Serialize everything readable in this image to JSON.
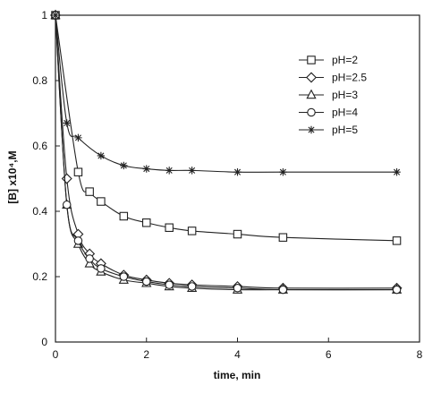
{
  "colors": {
    "ink": "#222222",
    "background": "#ffffff"
  },
  "chart_data": {
    "type": "line",
    "title": "",
    "xlabel": "time, min",
    "ylabel": "[B] x10⁴,M",
    "xlim": [
      0,
      8
    ],
    "ylim": [
      0,
      1
    ],
    "xticks": [
      0,
      2,
      4,
      6,
      8
    ],
    "yticks": [
      0,
      0.2,
      0.4,
      0.6,
      0.8,
      1
    ],
    "xtick_labels": [
      "0",
      "2",
      "4",
      "6",
      "8"
    ],
    "ytick_labels": [
      "0",
      "0.2",
      "0.4",
      "0.6",
      "0.8",
      "1"
    ],
    "grid": false,
    "legend_position": "top-right",
    "series": [
      {
        "name": "pH=2",
        "marker": "square",
        "x": [
          0,
          0.5,
          0.75,
          1.0,
          1.5,
          2.0,
          2.5,
          3.0,
          4.0,
          5.0,
          7.5
        ],
        "y": [
          1.0,
          0.52,
          0.46,
          0.43,
          0.385,
          0.365,
          0.35,
          0.34,
          0.33,
          0.32,
          0.31
        ]
      },
      {
        "name": "pH=2.5",
        "marker": "diamond",
        "x": [
          0,
          0.25,
          0.5,
          0.75,
          1.0,
          1.5,
          2.0,
          2.5,
          3.0,
          4.0,
          5.0,
          7.5
        ],
        "y": [
          1.0,
          0.5,
          0.33,
          0.27,
          0.24,
          0.205,
          0.19,
          0.18,
          0.175,
          0.17,
          0.165,
          0.165
        ]
      },
      {
        "name": "pH=3",
        "marker": "triangle",
        "x": [
          0,
          0.25,
          0.5,
          0.75,
          1.0,
          1.5,
          2.0,
          2.5,
          3.0,
          4.0,
          5.0,
          7.5
        ],
        "y": [
          1.0,
          0.42,
          0.3,
          0.24,
          0.215,
          0.19,
          0.18,
          0.17,
          0.165,
          0.16,
          0.16,
          0.16
        ]
      },
      {
        "name": "pH=4",
        "marker": "circle",
        "x": [
          0,
          0.25,
          0.5,
          0.75,
          1.0,
          1.5,
          2.0,
          2.5,
          3.0,
          4.0,
          5.0,
          7.5
        ],
        "y": [
          1.0,
          0.42,
          0.31,
          0.255,
          0.225,
          0.2,
          0.185,
          0.175,
          0.17,
          0.165,
          0.16,
          0.16
        ]
      },
      {
        "name": "pH=5",
        "marker": "star",
        "x": [
          0,
          0.25,
          0.5,
          1.0,
          1.5,
          2.0,
          2.5,
          3.0,
          4.0,
          5.0,
          7.5
        ],
        "y": [
          1.0,
          0.67,
          0.625,
          0.57,
          0.54,
          0.53,
          0.525,
          0.525,
          0.52,
          0.52,
          0.52
        ]
      }
    ]
  }
}
